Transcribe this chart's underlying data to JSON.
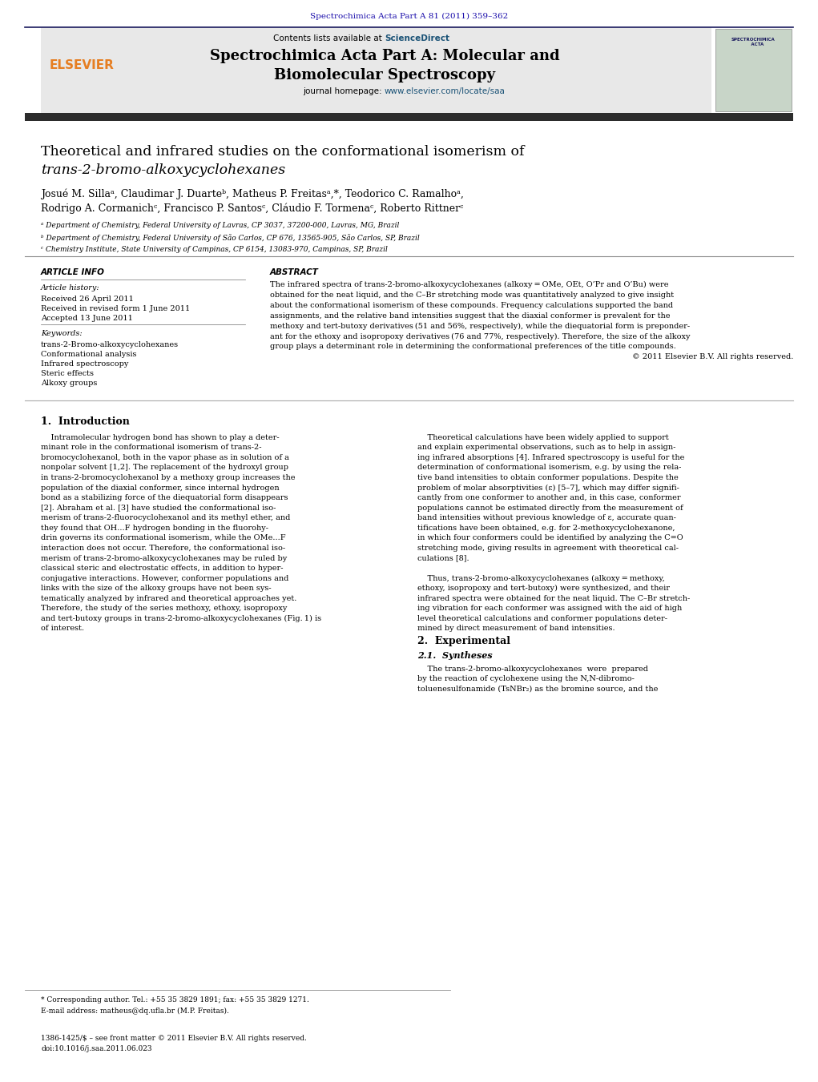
{
  "page_width": 10.21,
  "page_height": 13.51,
  "bg_color": "#ffffff",
  "journal_ref": "Spectrochimica Acta Part A 81 (2011) 359–362",
  "journal_ref_color": "#1a0dab",
  "header_bg": "#e8e8e8",
  "header_title_line1": "Spectrochimica Acta Part A: Molecular and",
  "header_title_line2": "Biomolecular Spectroscopy",
  "sciencedirect_color": "#1a5276",
  "homepage_link_color": "#1a5276",
  "elsevier_color": "#e67e22",
  "dark_bar_color": "#2c2c2c",
  "paper_title_line1": "Theoretical and infrared studies on the conformational isomerism of",
  "paper_title_line2": "trans-2-bromo-alkoxycyclohexanes",
  "authors_line1": "Josué M. Sillaᵃ, Claudimar J. Duarteᵇ, Matheus P. Freitasᵃ,*, Teodorico C. Ramalhoᵃ,",
  "authors_line2": "Rodrigo A. Cormanichᶜ, Francisco P. Santosᶜ, Cláudio F. Tormenaᶜ, Roberto Rittnerᶜ",
  "affil_a": "ᵃ Department of Chemistry, Federal University of Lavras, CP 3037, 37200-000, Lavras, MG, Brazil",
  "affil_b": "ᵇ Department of Chemistry, Federal University of São Carlos, CP 676, 13565-905, São Carlos, SP, Brazil",
  "affil_c": "ᶜ Chemistry Institute, State University of Campinas, CP 6154, 13083-970, Campinas, SP, Brazil",
  "article_info_header": "ARTICLE INFO",
  "abstract_header": "ABSTRACT",
  "article_history_label": "Article history:",
  "received1": "Received 26 April 2011",
  "received2": "Received in revised form 1 June 2011",
  "accepted": "Accepted 13 June 2011",
  "keywords_label": "Keywords:",
  "keyword1": "trans-2-Bromo-alkoxycyclohexanes",
  "keyword2": "Conformational analysis",
  "keyword3": "Infrared spectroscopy",
  "keyword4": "Steric effects",
  "keyword5": "Alkoxy groups",
  "intro_header": "1.  Introduction",
  "section2_header": "2.  Experimental",
  "section21_header": "2.1.  Syntheses",
  "footnote_star": "* Corresponding author. Tel.: +55 35 3829 1891; fax: +55 35 3829 1271.",
  "footnote_email": "E-mail address: matheus@dq.ufla.br (M.P. Freitas).",
  "footnote_issn": "1386-1425/$ – see front matter © 2011 Elsevier B.V. All rights reserved.",
  "footnote_doi": "doi:10.1016/j.saa.2011.06.023"
}
